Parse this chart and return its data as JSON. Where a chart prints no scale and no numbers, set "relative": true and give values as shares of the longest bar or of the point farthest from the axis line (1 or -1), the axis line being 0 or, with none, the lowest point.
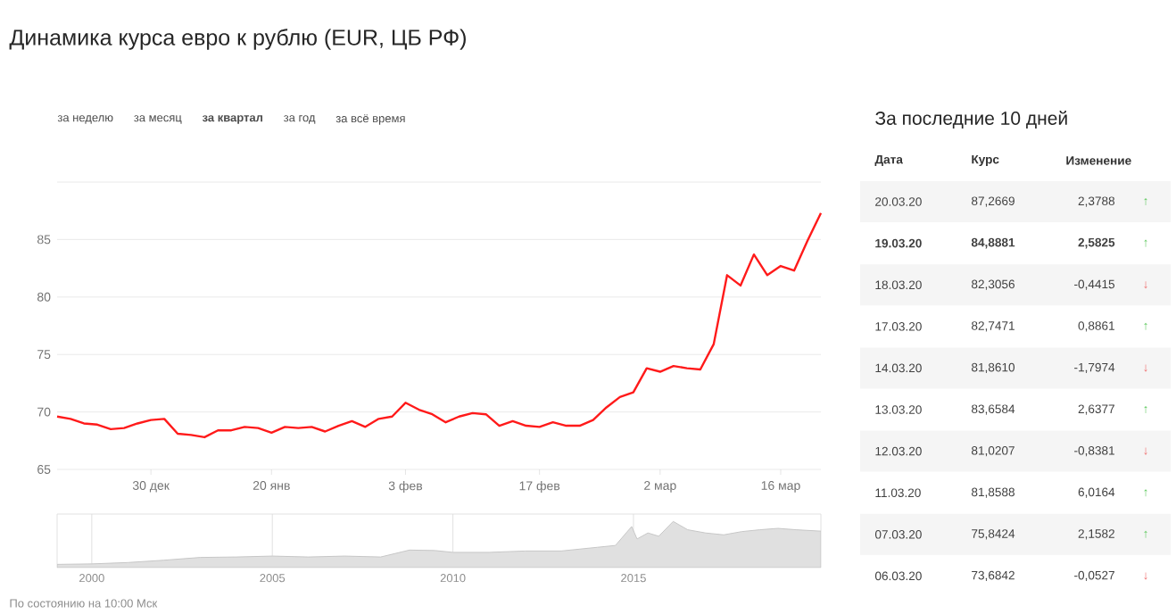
{
  "chart_data": [
    {
      "type": "line",
      "title": "Динамика курса евро к рублю (EUR, ЦБ РФ)",
      "color": "#ff1a1a",
      "grid": "y",
      "ylim": [
        65,
        90
      ],
      "yticks": [
        65,
        70,
        75,
        80,
        85,
        {
          "value": 90,
          "label": null
        }
      ],
      "categories": [
        null,
        null,
        null,
        null,
        null,
        null,
        null,
        "30 дек",
        null,
        null,
        null,
        null,
        null,
        null,
        null,
        null,
        "20 янв",
        null,
        null,
        null,
        null,
        null,
        null,
        null,
        null,
        null,
        "3 фев",
        null,
        null,
        null,
        null,
        null,
        null,
        null,
        null,
        null,
        "17 фев",
        null,
        null,
        null,
        null,
        null,
        null,
        null,
        null,
        "2 мар",
        null,
        null,
        null,
        null,
        null,
        null,
        null,
        null,
        "16 мар",
        null,
        null,
        null
      ],
      "values": [
        69.6,
        69.4,
        69.0,
        68.9,
        68.5,
        68.6,
        69.0,
        69.3,
        69.4,
        68.1,
        68.0,
        67.8,
        68.4,
        68.4,
        68.7,
        68.6,
        68.2,
        68.7,
        68.6,
        68.7,
        68.3,
        68.8,
        69.2,
        68.7,
        69.4,
        69.6,
        70.8,
        70.2,
        69.8,
        69.1,
        69.6,
        69.9,
        69.8,
        68.8,
        69.2,
        68.8,
        68.7,
        69.1,
        68.8,
        68.8,
        69.3,
        70.4,
        71.3,
        71.7,
        73.8,
        73.5,
        74.0,
        73.8,
        73.7,
        75.9,
        81.9,
        81.0,
        83.7,
        81.9,
        82.7,
        82.3,
        84.9,
        87.3
      ],
      "annotations": [
        "за неделю",
        "за месяц",
        "**за квартал**",
        "за год",
        "за всё время",
        "По состоянию на 10:00 Мск"
      ]
    },
    {
      "type": "other",
      "title": "За последние 10 дней",
      "annotations": [
        "Дата",
        "Курс",
        "Изменение",
        "20.03.20",
        "87,2669",
        "2,3788",
        "↑",
        "**19.03.20**",
        "**84,8881**",
        "**2,5825**",
        "↑",
        "18.03.20",
        "82,3056",
        "-0,4415",
        "↓",
        "17.03.20",
        "82,7471",
        "0,8861",
        "↑",
        "14.03.20",
        "81,8610",
        "-1,7974",
        "↓",
        "13.03.20",
        "83,6584",
        "2,6377",
        "↑",
        "12.03.20",
        "81,0207",
        "-0,8381",
        "↓",
        "11.03.20",
        "81,8588",
        "6,0164",
        "↑",
        "07.03.20",
        "75,8424",
        "2,1582",
        "↑",
        "06.03.20",
        "73,6842",
        "-0,0527",
        "↓"
      ],
      "colors": [
        "#5cc85c",
        "#5cc85c",
        "#ee6666",
        "#5cc85c",
        "#ee6666",
        "#5cc85c",
        "#ee6666",
        "#5cc85c",
        "#5cc85c",
        "#ee6666"
      ]
    },
    {
      "type": "area",
      "relative": true,
      "color": "#e0e0e0",
      "grid": "x",
      "xlim": [
        1999.04,
        2020.19
      ],
      "xticks": [
        2000,
        2005,
        2010,
        2015
      ],
      "x": [
        1999.04,
        2000,
        2001,
        2002,
        2003,
        2004,
        2005,
        2006,
        2007,
        2008,
        2008.8,
        2009.5,
        2010,
        2011,
        2012,
        2013,
        2014,
        2014.5,
        2014.95,
        2015.1,
        2015.4,
        2015.7,
        2016.1,
        2016.5,
        2017,
        2017.5,
        2018,
        2018.5,
        2019,
        2019.5,
        2020.19
      ],
      "values": [
        0.07,
        0.08,
        0.11,
        0.16,
        0.22,
        0.23,
        0.25,
        0.23,
        0.25,
        0.23,
        0.38,
        0.37,
        0.33,
        0.33,
        0.36,
        0.36,
        0.44,
        0.48,
        0.89,
        0.62,
        0.75,
        0.68,
        1,
        0.82,
        0.75,
        0.71,
        0.78,
        0.82,
        0.85,
        0.82,
        0.79
      ]
    }
  ]
}
